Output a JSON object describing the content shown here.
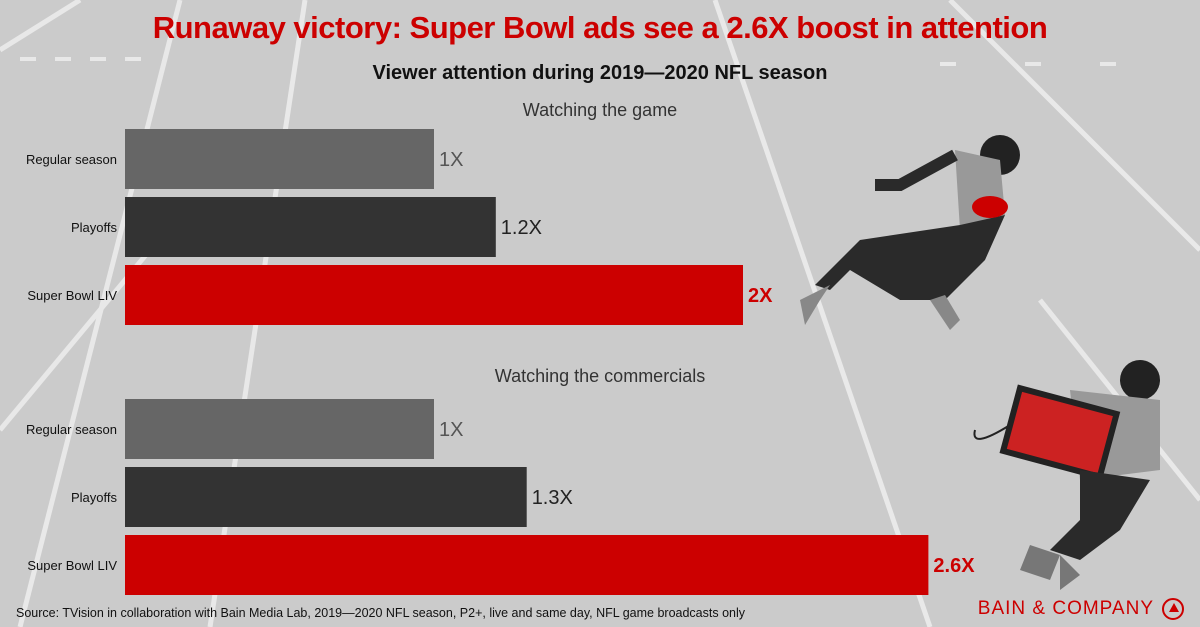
{
  "title": "Runaway victory: Super Bowl ads see a 2.6X boost in attention",
  "subtitle": "Viewer attention during 2019—2020 NFL season",
  "source": "Source: TVision in collaboration with Bain Media Lab, 2019—2020 NFL season, P2+, live and same day, NFL game broadcasts only",
  "logo": "BAIN & COMPANY",
  "colors": {
    "regular": "#666666",
    "playoffs": "#333333",
    "superbowl": "#cc0000",
    "title": "#cc0000"
  },
  "chart_data": [
    {
      "type": "bar",
      "orientation": "horizontal",
      "title": "Watching the game",
      "categories": [
        "Regular season",
        "Playoffs",
        "Super Bowl LIV"
      ],
      "values": [
        1,
        1.2,
        2
      ],
      "labels": [
        "1X",
        "1.2X",
        "2X"
      ]
    },
    {
      "type": "bar",
      "orientation": "horizontal",
      "title": "Watching the commercials",
      "categories": [
        "Regular season",
        "Playoffs",
        "Super Bowl LIV"
      ],
      "values": [
        1,
        1.3,
        2.6
      ],
      "labels": [
        "1X",
        "1.3X",
        "2.6X"
      ]
    }
  ]
}
